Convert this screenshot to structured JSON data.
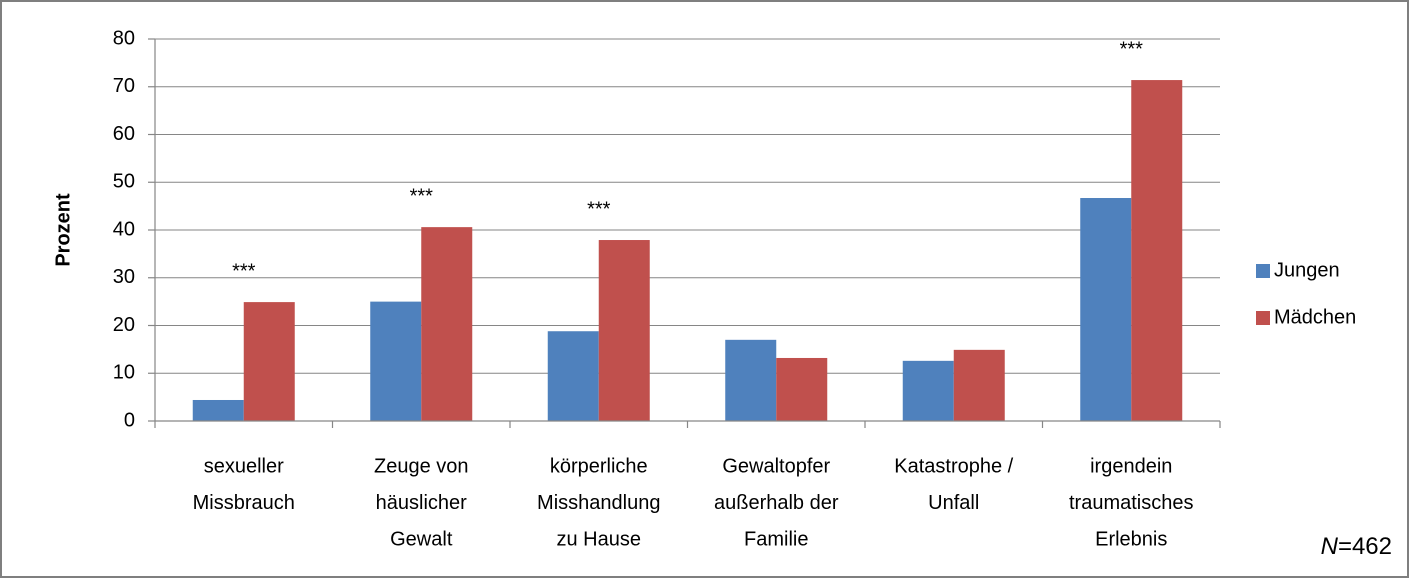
{
  "chart_data": {
    "type": "bar",
    "y_label": "Prozent",
    "categories": [
      [
        "sexueller",
        "Missbrauch"
      ],
      [
        "Zeuge von",
        "häuslicher",
        "Gewalt"
      ],
      [
        "körperliche",
        "Misshandlung",
        "zu Hause"
      ],
      [
        "Gewaltopfer",
        "außerhalb der",
        "Familie"
      ],
      [
        "Katastrophe /",
        "Unfall"
      ],
      [
        "irgendein",
        "traumatisches",
        "Erlebnis"
      ]
    ],
    "series": [
      {
        "name": "Jungen",
        "color": "#4f81bd",
        "values": [
          4.4,
          25,
          18.8,
          17,
          12.6,
          46.7
        ]
      },
      {
        "name": "Mädchen",
        "color": "#c0504d",
        "values": [
          24.9,
          40.6,
          37.9,
          13.2,
          14.9,
          71.4
        ]
      }
    ],
    "significance": [
      "***",
      "***",
      "***",
      null,
      null,
      "***"
    ],
    "ylim": [
      0,
      80
    ],
    "yticks": [
      0,
      10,
      20,
      30,
      40,
      50,
      60,
      70,
      80
    ],
    "grid": true,
    "legend": "right",
    "note": [
      "N",
      "=462"
    ]
  }
}
